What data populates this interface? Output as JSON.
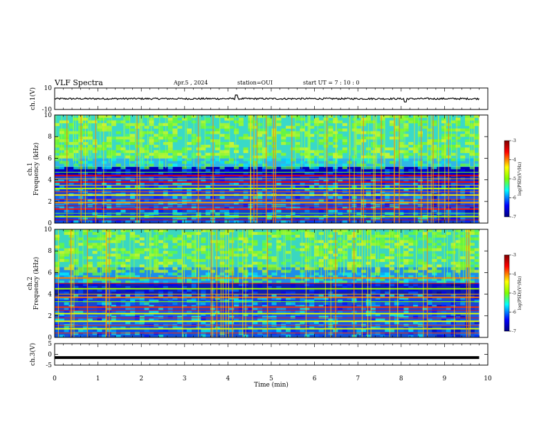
{
  "header": {
    "title": "VLF Spectra",
    "date": "Apr.5 , 2024",
    "station": "station=OUI",
    "start": "start UT = 7 : 10 : 0"
  },
  "chart_data": [
    {
      "type": "line",
      "panel": "ch1-waveform",
      "ylabel": "ch.1(V)",
      "ylim": [
        -10,
        10
      ],
      "yticks": [
        "10",
        "-10"
      ],
      "xlim": [
        0,
        10
      ],
      "series": [
        {
          "values_approx": "noise around 0 V, amplitude about 1 V, spikes near 4.2 min and 8.1 min"
        }
      ]
    },
    {
      "type": "heatmap",
      "panel": "ch1-spectrogram",
      "ylabel": "ch.1 Frequency (kHz)",
      "ylim": [
        0,
        10
      ],
      "yticks": [
        "0",
        "2",
        "4",
        "6",
        "8",
        "10"
      ],
      "xlim": [
        0,
        10
      ],
      "colorbar": {
        "label": "log(PSD)(V²/Hz)",
        "range": [
          -7,
          -3
        ],
        "ticks": [
          "-3",
          "-4",
          "-5",
          "-6",
          "-7"
        ]
      }
    },
    {
      "type": "heatmap",
      "panel": "ch2-spectrogram",
      "ylabel": "ch.2 Frequency (kHz)",
      "ylim": [
        0,
        10
      ],
      "yticks": [
        "0",
        "2",
        "4",
        "6",
        "8",
        "10"
      ],
      "xlim": [
        0,
        10
      ],
      "colorbar": {
        "label": "log(PSD)(V²/Hz)",
        "range": [
          -7,
          -3
        ],
        "ticks": [
          "-3",
          "-4",
          "-5",
          "-6",
          "-7"
        ]
      }
    },
    {
      "type": "line",
      "panel": "ch3-waveform",
      "ylabel": "ch.3(V)",
      "ylim": [
        -5,
        5
      ],
      "yticks": [
        "5",
        "0",
        "-5"
      ],
      "xlim": [
        0,
        10
      ],
      "series": [
        {
          "values_approx": "constant about -1.5 V"
        }
      ]
    }
  ],
  "xaxis": {
    "label": "Time (min)",
    "ticks": [
      "0",
      "1",
      "2",
      "3",
      "4",
      "5",
      "6",
      "7",
      "8",
      "9",
      "10"
    ]
  },
  "colors": {
    "jet": [
      "#00007f",
      "#0000ff",
      "#00ffff",
      "#7fff00",
      "#ffff00",
      "#ff0000",
      "#7f0000"
    ]
  }
}
